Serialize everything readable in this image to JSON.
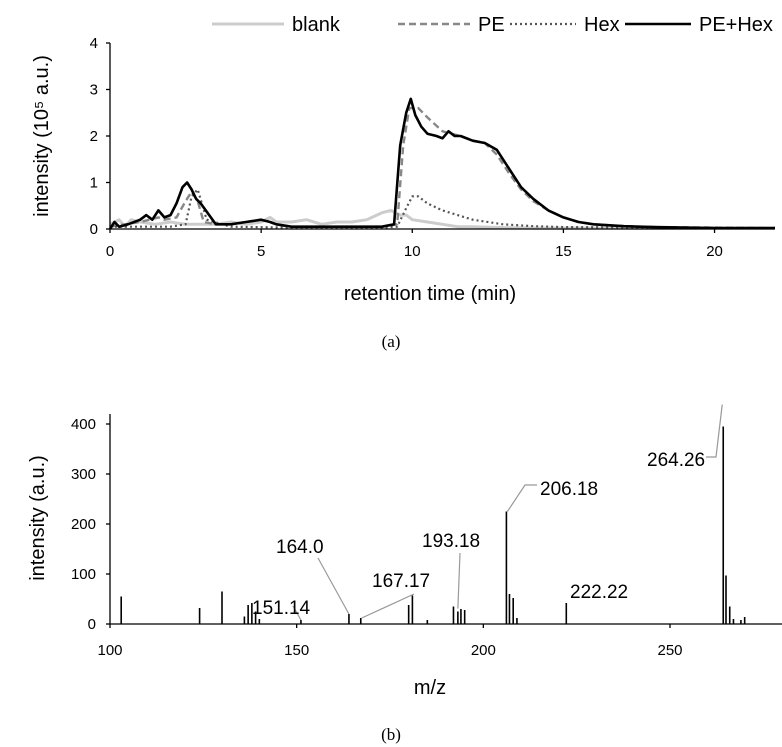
{
  "panel_a_label": "(a)",
  "panel_b_label": "(b)",
  "chart_data": [
    {
      "type": "line",
      "xlabel": "retention time (min)",
      "ylabel": "intensity (10⁵ a.u.)",
      "xlim": [
        0,
        22
      ],
      "ylim": [
        0,
        4
      ],
      "xticks": [
        0,
        5,
        10,
        15,
        20
      ],
      "yticks": [
        0,
        1,
        2,
        3,
        4
      ],
      "legend_position": "top",
      "series": [
        {
          "name": "blank",
          "color": "#cccccc",
          "style": "solid",
          "x": [
            0,
            0.3,
            0.5,
            0.7,
            1.0,
            1.5,
            2.0,
            2.5,
            3.0,
            3.5,
            4.0,
            4.5,
            5.0,
            5.3,
            5.5,
            6.0,
            6.5,
            7.0,
            7.5,
            8.0,
            8.5,
            9.0,
            9.3,
            9.6,
            9.8,
            10.0,
            10.5,
            11.0,
            11.5,
            12.0,
            13.0,
            14.0,
            16.0,
            22.0
          ],
          "y": [
            0.1,
            0.2,
            0.05,
            0.2,
            0.15,
            0.1,
            0.15,
            0.1,
            0.1,
            0.1,
            0.15,
            0.1,
            0.15,
            0.25,
            0.15,
            0.15,
            0.2,
            0.1,
            0.15,
            0.15,
            0.2,
            0.35,
            0.4,
            0.3,
            0.3,
            0.2,
            0.15,
            0.1,
            0.05,
            0.05,
            0.03,
            0.02,
            0.02,
            0.02
          ]
        },
        {
          "name": "PE",
          "color": "#888888",
          "style": "dashed",
          "x": [
            0,
            0.5,
            1.0,
            1.3,
            1.6,
            1.8,
            2.2,
            2.5,
            2.7,
            2.9,
            3.1,
            3.5,
            4.0,
            4.5,
            5.0,
            5.5,
            6.0,
            7.0,
            8.0,
            9.0,
            9.5,
            9.7,
            9.9,
            10.2,
            10.5,
            11.0,
            11.3,
            11.6,
            12.0,
            12.4,
            12.8,
            13.2,
            13.6,
            14.0,
            14.5,
            15.0,
            15.5,
            16.0,
            17.0,
            18.0,
            20.0,
            22.0
          ],
          "y": [
            0.05,
            0.1,
            0.15,
            0.2,
            0.25,
            0.2,
            0.25,
            0.6,
            0.8,
            0.6,
            0.15,
            0.1,
            0.1,
            0.15,
            0.2,
            0.1,
            0.05,
            0.05,
            0.05,
            0.05,
            0.1,
            1.8,
            2.6,
            2.6,
            2.4,
            2.1,
            2.05,
            2.0,
            1.9,
            1.85,
            1.6,
            1.2,
            0.85,
            0.6,
            0.4,
            0.25,
            0.15,
            0.1,
            0.06,
            0.04,
            0.03,
            0.02
          ]
        },
        {
          "name": "Hex",
          "color": "#555555",
          "style": "dotted",
          "x": [
            0,
            1.0,
            2.0,
            2.5,
            2.7,
            2.9,
            3.2,
            4.0,
            6.0,
            8.0,
            9.0,
            9.5,
            9.8,
            10.0,
            10.2,
            10.5,
            11.0,
            11.5,
            12.0,
            13.0,
            14.0,
            15.0,
            22.0
          ],
          "y": [
            0.05,
            0.05,
            0.05,
            0.1,
            0.7,
            0.85,
            0.2,
            0.05,
            0.03,
            0.03,
            0.03,
            0.05,
            0.45,
            0.7,
            0.7,
            0.55,
            0.4,
            0.3,
            0.2,
            0.1,
            0.06,
            0.04,
            0.02
          ]
        },
        {
          "name": "PE+Hex",
          "color": "#000000",
          "style": "solid",
          "x": [
            0,
            0.15,
            0.3,
            0.6,
            1.0,
            1.2,
            1.4,
            1.6,
            1.8,
            2.0,
            2.2,
            2.4,
            2.55,
            2.7,
            2.85,
            3.0,
            3.5,
            4.0,
            4.5,
            5.0,
            5.3,
            5.5,
            6.0,
            7.0,
            8.0,
            9.0,
            9.4,
            9.6,
            9.8,
            9.95,
            10.1,
            10.3,
            10.5,
            10.8,
            11.0,
            11.2,
            11.4,
            11.6,
            12.0,
            12.4,
            12.8,
            13.2,
            13.6,
            14.0,
            14.5,
            15.0,
            15.5,
            16.0,
            17.0,
            18.0,
            20.0,
            22.0
          ],
          "y": [
            0.0,
            0.15,
            0.05,
            0.1,
            0.2,
            0.3,
            0.2,
            0.4,
            0.25,
            0.3,
            0.55,
            0.9,
            1.0,
            0.85,
            0.65,
            0.55,
            0.1,
            0.1,
            0.15,
            0.2,
            0.15,
            0.1,
            0.05,
            0.05,
            0.05,
            0.05,
            0.1,
            1.8,
            2.5,
            2.8,
            2.45,
            2.2,
            2.05,
            2.0,
            1.95,
            2.1,
            2.0,
            2.0,
            1.9,
            1.85,
            1.7,
            1.3,
            0.9,
            0.65,
            0.4,
            0.25,
            0.15,
            0.1,
            0.06,
            0.04,
            0.02,
            0.02
          ]
        }
      ]
    },
    {
      "type": "bar",
      "xlabel": "m/z",
      "ylabel": "intensity (a.u.)",
      "xlim": [
        100,
        280
      ],
      "ylim": [
        0,
        420
      ],
      "xticks": [
        100,
        150,
        200,
        250
      ],
      "yticks": [
        0,
        100,
        200,
        300,
        400
      ],
      "peaks": [
        {
          "mz": 103.0,
          "intensity": 55
        },
        {
          "mz": 124.0,
          "intensity": 32
        },
        {
          "mz": 130.0,
          "intensity": 65
        },
        {
          "mz": 136.0,
          "intensity": 15
        },
        {
          "mz": 137.0,
          "intensity": 38
        },
        {
          "mz": 138.0,
          "intensity": 42
        },
        {
          "mz": 139.0,
          "intensity": 25
        },
        {
          "mz": 140.0,
          "intensity": 10
        },
        {
          "mz": 151.14,
          "intensity": 8
        },
        {
          "mz": 164.0,
          "intensity": 20
        },
        {
          "mz": 167.17,
          "intensity": 12
        },
        {
          "mz": 180.0,
          "intensity": 38
        },
        {
          "mz": 181.0,
          "intensity": 57
        },
        {
          "mz": 185.0,
          "intensity": 8
        },
        {
          "mz": 192.0,
          "intensity": 35
        },
        {
          "mz": 193.18,
          "intensity": 25
        },
        {
          "mz": 194.0,
          "intensity": 30
        },
        {
          "mz": 195.0,
          "intensity": 28
        },
        {
          "mz": 206.18,
          "intensity": 225
        },
        {
          "mz": 207.0,
          "intensity": 60
        },
        {
          "mz": 208.0,
          "intensity": 52
        },
        {
          "mz": 209.0,
          "intensity": 12
        },
        {
          "mz": 222.22,
          "intensity": 42
        },
        {
          "mz": 264.26,
          "intensity": 395
        },
        {
          "mz": 265.0,
          "intensity": 97
        },
        {
          "mz": 266.0,
          "intensity": 35
        },
        {
          "mz": 267.0,
          "intensity": 10
        },
        {
          "mz": 269.0,
          "intensity": 8
        },
        {
          "mz": 270.0,
          "intensity": 14
        }
      ],
      "annotations": [
        {
          "text": "151.14",
          "mz": 151.14,
          "intensity": 8
        },
        {
          "text": "164.0",
          "mz": 164.0,
          "intensity": 20
        },
        {
          "text": "167.17",
          "mz": 167.17,
          "intensity": 12
        },
        {
          "text": "193.18",
          "mz": 193.18,
          "intensity": 25
        },
        {
          "text": "206.18",
          "mz": 206.18,
          "intensity": 225
        },
        {
          "text": "222.22",
          "mz": 222.22,
          "intensity": 42
        },
        {
          "text": "264.26",
          "mz": 264.26,
          "intensity": 395
        }
      ]
    }
  ]
}
